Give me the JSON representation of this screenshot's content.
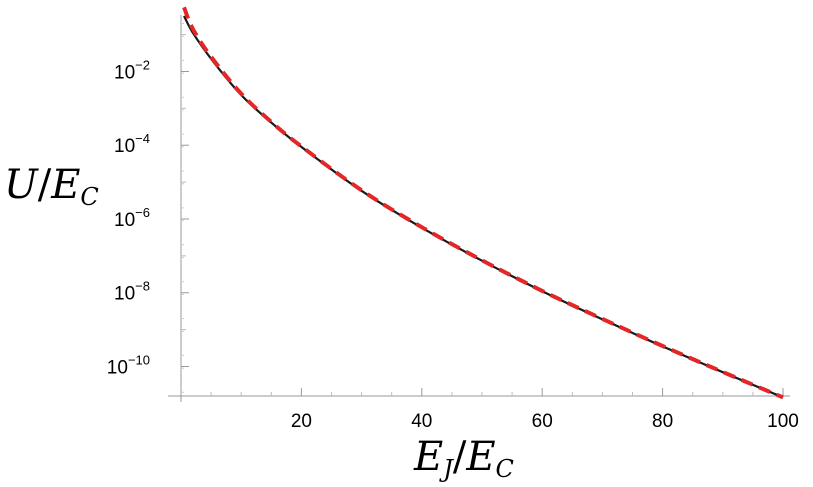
{
  "chart_data": {
    "type": "line",
    "xlabel": {
      "main": "E",
      "sub1": "J",
      "slash": "/",
      "main2": "E",
      "sub2": "C"
    },
    "ylabel": {
      "main": "U",
      "slash": "/",
      "main2": "E",
      "sub": "C"
    },
    "x_range": [
      0,
      100
    ],
    "y_range_log10": [
      -10.8,
      -0.55
    ],
    "y_scale": "log",
    "grid": false,
    "x_ticks": [
      {
        "value": 20,
        "label": "20"
      },
      {
        "value": 40,
        "label": "40"
      },
      {
        "value": 60,
        "label": "60"
      },
      {
        "value": 80,
        "label": "80"
      },
      {
        "value": 100,
        "label": "100"
      }
    ],
    "y_ticks": [
      {
        "value": 0.01,
        "base": "10",
        "exp": "−2"
      },
      {
        "value": 0.0001,
        "base": "10",
        "exp": "−4"
      },
      {
        "value": 1e-06,
        "base": "10",
        "exp": "−6"
      },
      {
        "value": 1e-08,
        "base": "10",
        "exp": "−8"
      },
      {
        "value": 1e-10,
        "base": "10",
        "exp": "−10"
      }
    ],
    "series": [
      {
        "color": "#1a1a1a",
        "style": "solid",
        "x": [
          0.5,
          2,
          5,
          10,
          15,
          20,
          30,
          40,
          50,
          60,
          70,
          80,
          90,
          100
        ],
        "y": [
          0.32,
          0.11,
          0.022,
          0.0023,
          0.00041,
          9e-05,
          5.8e-06,
          5.8e-07,
          7.4e-08,
          1.1e-08,
          1.9e-09,
          3.5e-10,
          7e-11,
          1.45e-11
        ]
      },
      {
        "color": "#e32626",
        "style": "dashed",
        "x": [
          0.5,
          2,
          5,
          10,
          15,
          20,
          30,
          40,
          50,
          60,
          70,
          80,
          90,
          100
        ],
        "y": [
          0.55,
          0.14,
          0.025,
          0.0025,
          0.00043,
          9.3e-05,
          6e-06,
          6e-07,
          7.6e-08,
          1.12e-08,
          1.95e-09,
          3.6e-10,
          7.1e-11,
          1.45e-11
        ]
      }
    ]
  }
}
